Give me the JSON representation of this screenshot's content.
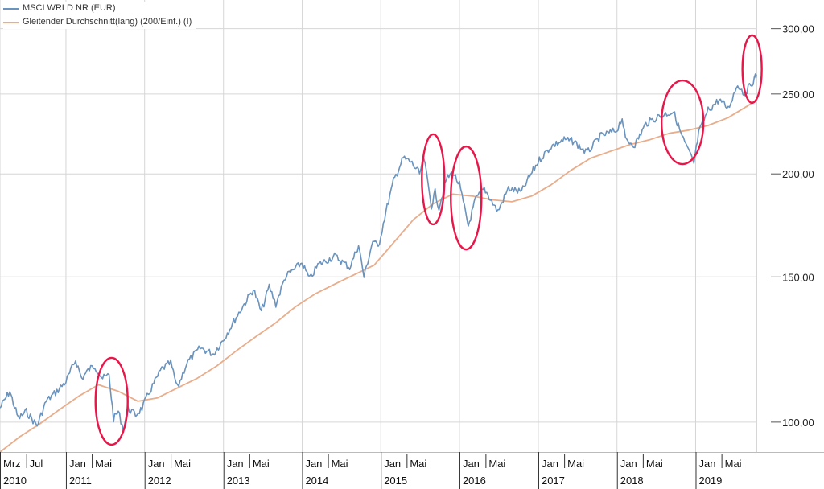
{
  "chart_data": {
    "type": "line",
    "title": "",
    "xlabel": "",
    "ylabel": "",
    "y_scale": "log",
    "ylim": [
      92,
      325
    ],
    "grid": true,
    "legend_placement": "top-left",
    "y_ticks": [
      {
        "value": 100,
        "label": "100,00"
      },
      {
        "value": 150,
        "label": "150,00"
      },
      {
        "value": 200,
        "label": "200,00"
      },
      {
        "value": 250,
        "label": "250,00"
      },
      {
        "value": 300,
        "label": "300,00"
      }
    ],
    "x_range": [
      "2010-03-01",
      "2019-10-10"
    ],
    "x_ticks": [
      {
        "date": "2010-03-01",
        "label": "Mrz",
        "year": "2010"
      },
      {
        "date": "2010-07-01",
        "label": "Jul"
      },
      {
        "date": "2011-01-01",
        "label": "Jan",
        "year": "2011"
      },
      {
        "date": "2011-05-01",
        "label": "Mai"
      },
      {
        "date": "2012-01-01",
        "label": "Jan",
        "year": "2012"
      },
      {
        "date": "2012-05-01",
        "label": "Mai"
      },
      {
        "date": "2013-01-01",
        "label": "Jan",
        "year": "2013"
      },
      {
        "date": "2013-05-01",
        "label": "Mai"
      },
      {
        "date": "2014-01-01",
        "label": "Jan",
        "year": "2014"
      },
      {
        "date": "2014-05-01",
        "label": "Mai"
      },
      {
        "date": "2015-01-01",
        "label": "Jan",
        "year": "2015"
      },
      {
        "date": "2015-05-01",
        "label": "Mai"
      },
      {
        "date": "2016-01-01",
        "label": "Jan",
        "year": "2016"
      },
      {
        "date": "2016-05-01",
        "label": "Mai"
      },
      {
        "date": "2017-01-01",
        "label": "Jan",
        "year": "2017"
      },
      {
        "date": "2017-05-01",
        "label": "Mai"
      },
      {
        "date": "2018-01-01",
        "label": "Jan",
        "year": "2018"
      },
      {
        "date": "2018-05-01",
        "label": "Mai"
      },
      {
        "date": "2019-01-01",
        "label": "Jan",
        "year": "2019"
      },
      {
        "date": "2019-05-01",
        "label": "Mai"
      }
    ],
    "series": [
      {
        "name": "MSCI WRLD NR (EUR)",
        "color": "#6a93bd",
        "points": [
          [
            "2010-03-01",
            104
          ],
          [
            "2010-04-15",
            109
          ],
          [
            "2010-05-25",
            101
          ],
          [
            "2010-07-01",
            103
          ],
          [
            "2010-08-20",
            99
          ],
          [
            "2010-10-01",
            106
          ],
          [
            "2010-11-20",
            109
          ],
          [
            "2011-01-01",
            112
          ],
          [
            "2011-02-15",
            119
          ],
          [
            "2011-03-15",
            113
          ],
          [
            "2011-04-20",
            116
          ],
          [
            "2011-05-15",
            117
          ],
          [
            "2011-06-20",
            113
          ],
          [
            "2011-07-20",
            114
          ],
          [
            "2011-08-10",
            101
          ],
          [
            "2011-09-01",
            103
          ],
          [
            "2011-09-25",
            98
          ],
          [
            "2011-10-15",
            104
          ],
          [
            "2011-11-20",
            102
          ],
          [
            "2011-12-20",
            104
          ],
          [
            "2012-01-25",
            109
          ],
          [
            "2012-03-20",
            116
          ],
          [
            "2012-05-01",
            118
          ],
          [
            "2012-06-01",
            110
          ],
          [
            "2012-07-15",
            118
          ],
          [
            "2012-09-15",
            123
          ],
          [
            "2012-11-15",
            121
          ],
          [
            "2013-01-01",
            126
          ],
          [
            "2013-03-01",
            134
          ],
          [
            "2013-05-20",
            145
          ],
          [
            "2013-06-25",
            136
          ],
          [
            "2013-08-01",
            146
          ],
          [
            "2013-09-01",
            139
          ],
          [
            "2013-10-15",
            150
          ],
          [
            "2013-12-31",
            156
          ],
          [
            "2014-02-05",
            149
          ],
          [
            "2014-03-15",
            155
          ],
          [
            "2014-06-01",
            159
          ],
          [
            "2014-08-10",
            154
          ],
          [
            "2014-09-20",
            164
          ],
          [
            "2014-10-15",
            150
          ],
          [
            "2014-11-25",
            166
          ],
          [
            "2014-12-20",
            163
          ],
          [
            "2015-01-25",
            180
          ],
          [
            "2015-03-01",
            196
          ],
          [
            "2015-04-15",
            209
          ],
          [
            "2015-05-20",
            207
          ],
          [
            "2015-06-30",
            200
          ],
          [
            "2015-07-20",
            209
          ],
          [
            "2015-08-24",
            183
          ],
          [
            "2015-09-10",
            190
          ],
          [
            "2015-09-28",
            182
          ],
          [
            "2015-11-01",
            197
          ],
          [
            "2015-12-01",
            201
          ],
          [
            "2016-01-01",
            194
          ],
          [
            "2016-02-11",
            173
          ],
          [
            "2016-03-15",
            186
          ],
          [
            "2016-04-25",
            192
          ],
          [
            "2016-06-27",
            180
          ],
          [
            "2016-08-15",
            192
          ],
          [
            "2016-10-15",
            190
          ],
          [
            "2016-11-10",
            196
          ],
          [
            "2016-12-31",
            207
          ],
          [
            "2017-03-01",
            216
          ],
          [
            "2017-05-01",
            220
          ],
          [
            "2017-06-15",
            219
          ],
          [
            "2017-08-15",
            212
          ],
          [
            "2017-10-15",
            222
          ],
          [
            "2017-12-31",
            226
          ],
          [
            "2018-01-25",
            234
          ],
          [
            "2018-02-09",
            220
          ],
          [
            "2018-03-25",
            217
          ],
          [
            "2018-05-15",
            230
          ],
          [
            "2018-07-15",
            235
          ],
          [
            "2018-09-20",
            238
          ],
          [
            "2018-10-30",
            222
          ],
          [
            "2018-12-24",
            206
          ],
          [
            "2019-01-15",
            224
          ],
          [
            "2019-02-28",
            239
          ],
          [
            "2019-04-20",
            246
          ],
          [
            "2019-06-01",
            240
          ],
          [
            "2019-07-15",
            257
          ],
          [
            "2019-08-15",
            250
          ],
          [
            "2019-09-20",
            258
          ],
          [
            "2019-10-05",
            262
          ],
          [
            "2019-10-10",
            264
          ]
        ]
      },
      {
        "name": "Gleitender Durchschnitt(lang) (200/Einf.) (I)",
        "color": "#e9ad8c",
        "points": [
          [
            "2010-03-01",
            92
          ],
          [
            "2010-06-01",
            96
          ],
          [
            "2010-09-01",
            99.5
          ],
          [
            "2010-12-01",
            103.5
          ],
          [
            "2011-03-01",
            107.5
          ],
          [
            "2011-06-01",
            111
          ],
          [
            "2011-09-01",
            109
          ],
          [
            "2011-12-01",
            106
          ],
          [
            "2012-03-01",
            107
          ],
          [
            "2012-06-01",
            110
          ],
          [
            "2012-09-01",
            113
          ],
          [
            "2012-12-01",
            117
          ],
          [
            "2013-03-01",
            122
          ],
          [
            "2013-06-01",
            127
          ],
          [
            "2013-09-01",
            132
          ],
          [
            "2013-12-01",
            138
          ],
          [
            "2014-03-01",
            143
          ],
          [
            "2014-06-01",
            147
          ],
          [
            "2014-09-01",
            151
          ],
          [
            "2014-12-01",
            155
          ],
          [
            "2015-03-01",
            165
          ],
          [
            "2015-06-01",
            176
          ],
          [
            "2015-09-01",
            184
          ],
          [
            "2015-12-01",
            189
          ],
          [
            "2016-03-01",
            188
          ],
          [
            "2016-06-01",
            186
          ],
          [
            "2016-09-01",
            185
          ],
          [
            "2016-12-01",
            188
          ],
          [
            "2017-03-01",
            194
          ],
          [
            "2017-06-01",
            202
          ],
          [
            "2017-09-01",
            209
          ],
          [
            "2017-12-01",
            213
          ],
          [
            "2018-03-01",
            217
          ],
          [
            "2018-06-01",
            220
          ],
          [
            "2018-09-01",
            224
          ],
          [
            "2018-12-01",
            226
          ],
          [
            "2019-03-01",
            229
          ],
          [
            "2019-06-01",
            234
          ],
          [
            "2019-09-01",
            242
          ],
          [
            "2019-10-10",
            246
          ]
        ]
      }
    ],
    "annotations": [
      {
        "type": "ellipse",
        "color": "#e8174a",
        "x": "2011-08-01",
        "y": 106
      },
      {
        "type": "ellipse",
        "color": "#e8174a",
        "x": "2015-09-01",
        "y": 197
      },
      {
        "type": "ellipse",
        "color": "#e8174a",
        "x": "2016-02-01",
        "y": 187
      },
      {
        "type": "ellipse",
        "color": "#e8174a",
        "x": "2018-11-01",
        "y": 231
      },
      {
        "type": "ellipse",
        "color": "#e8174a",
        "x": "2019-09-20",
        "y": 268
      }
    ]
  }
}
